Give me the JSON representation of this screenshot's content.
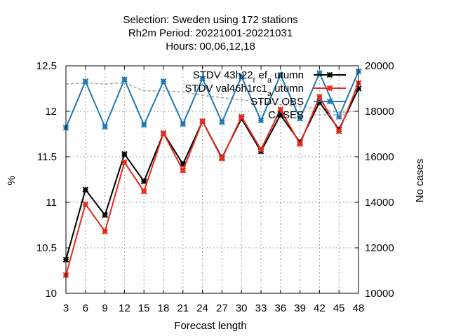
{
  "chart_data": {
    "type": "line",
    "title_lines": [
      "Selection: Sweden using    172 stations",
      "Rh2m   Period: 20221001-20221031",
      "Hours:  00,06,12,18"
    ],
    "xlabel": "Forecast length",
    "ylabel": "%",
    "y2label": "No cases",
    "x": [
      3,
      6,
      9,
      12,
      15,
      18,
      21,
      24,
      27,
      30,
      33,
      36,
      39,
      42,
      45,
      48
    ],
    "xticks": [
      3,
      6,
      9,
      12,
      15,
      18,
      21,
      24,
      27,
      30,
      33,
      36,
      39,
      42,
      45,
      48
    ],
    "xlim": [
      3,
      48
    ],
    "ylim": [
      10,
      12.5
    ],
    "yticks": [
      10,
      10.5,
      11,
      11.5,
      12,
      12.5
    ],
    "y2lim": [
      10000,
      20000
    ],
    "y2ticks": [
      10000,
      12000,
      14000,
      16000,
      18000,
      20000
    ],
    "grid": true,
    "legend_position": "top-right",
    "series": [
      {
        "name": "STDV 43h22_r ef_a utumn",
        "legend_main": "STDV 43h22",
        "legend_parts": [
          [
            "_",
            "r"
          ],
          [
            "",
            " ef"
          ],
          [
            "_",
            "a"
          ],
          [
            "",
            " utumn"
          ]
        ],
        "color": "#000000",
        "marker": "star",
        "axis": "y1",
        "values": [
          10.37,
          11.14,
          10.86,
          11.53,
          11.23,
          11.76,
          11.42,
          11.89,
          11.49,
          11.92,
          11.56,
          11.96,
          11.66,
          12.1,
          11.8,
          12.25
        ]
      },
      {
        "name": "STDV val46h1rc1_a utumn",
        "legend_main": "STDV val46h1rc1",
        "legend_parts": [
          [
            "_",
            "a"
          ],
          [
            "",
            " utumn"
          ]
        ],
        "color": "#e8291c",
        "marker": "star",
        "axis": "y1",
        "values": [
          10.2,
          10.98,
          10.68,
          11.44,
          11.12,
          11.76,
          11.35,
          11.89,
          11.48,
          11.94,
          11.58,
          12.02,
          11.64,
          12.16,
          11.78,
          12.31
        ]
      },
      {
        "name": "STDV OBS",
        "legend_main": "STDV OBS",
        "legend_parts": [],
        "color": "#1f77b4",
        "marker": "star",
        "axis": "y1",
        "values": [
          11.82,
          12.33,
          11.83,
          12.35,
          11.85,
          12.33,
          11.86,
          12.36,
          11.88,
          12.38,
          11.9,
          12.4,
          11.92,
          12.42,
          11.94,
          12.44
        ]
      },
      {
        "name": "CASES",
        "legend_main": "CASES",
        "legend_parts": [],
        "color": "#a0a0a0",
        "marker": "none",
        "dashed": true,
        "axis": "y2",
        "values": [
          19200,
          19250,
          19200,
          19250,
          18900,
          18900,
          18850,
          18700,
          18600,
          18500,
          18400,
          18300,
          18200,
          18100,
          17950,
          18000
        ]
      }
    ]
  }
}
